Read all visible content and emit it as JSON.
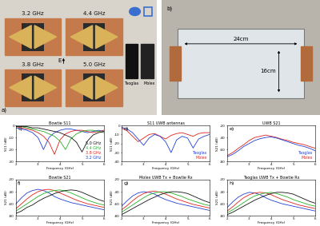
{
  "photos": {
    "a": {
      "panel": "a)",
      "labels": [
        "3.2 GHz",
        "4.4 GHz",
        "3.8 GHz",
        "5.0 GHz"
      ],
      "field": "E",
      "antennas": [
        "Taoglas",
        "Molex"
      ]
    },
    "b": {
      "panel": "b)",
      "width": "24cm",
      "height": "16cm"
    }
  },
  "chart_data": [
    {
      "type": "line",
      "panel": "c)",
      "title": "Bowtie S11",
      "xlabel": "Frequency (GHz)",
      "ylabel": "S11 (dB)",
      "xlim": [
        2,
        6
      ],
      "xticks": [
        2,
        3,
        4,
        5,
        6
      ],
      "ylim": [
        -30,
        0
      ],
      "yticks": [
        -30,
        -20,
        -10,
        0
      ],
      "x": [
        2.0,
        2.25,
        2.5,
        2.75,
        3.0,
        3.25,
        3.5,
        3.75,
        4.0,
        4.25,
        4.5,
        4.75,
        5.0,
        5.25,
        5.5,
        5.75,
        6.0
      ],
      "series": [
        {
          "name": "3.2 GHz",
          "color": "#1f3fd6",
          "values": [
            -2,
            -3,
            -4,
            -6,
            -10,
            -20,
            -10,
            -6,
            -4,
            -3,
            -3,
            -4,
            -5,
            -6,
            -5,
            -4,
            -5
          ]
        },
        {
          "name": "3.8 GHz",
          "color": "#e0201b",
          "values": [
            -1,
            -2,
            -3,
            -4,
            -6,
            -9,
            -14,
            -24,
            -12,
            -7,
            -5,
            -4,
            -4,
            -5,
            -6,
            -5,
            -4
          ]
        },
        {
          "name": "4.4 GHz",
          "color": "#22b022",
          "values": [
            -1,
            -1,
            -2,
            -3,
            -4,
            -5,
            -7,
            -9,
            -13,
            -20,
            -11,
            -7,
            -5,
            -4,
            -4,
            -5,
            -6
          ]
        },
        {
          "name": "5.0 GHz",
          "color": "#111111",
          "values": [
            -1,
            -1,
            -1,
            -2,
            -2,
            -3,
            -4,
            -5,
            -6,
            -8,
            -10,
            -14,
            -22,
            -13,
            -8,
            -6,
            -5
          ]
        }
      ]
    },
    {
      "type": "line",
      "panel": "d)",
      "title": "S11 UWB antennas",
      "xlabel": "Frequency (GHz)",
      "ylabel": "S11 (dB)",
      "xlim": [
        2,
        6
      ],
      "xticks": [
        2,
        3,
        4,
        5,
        6
      ],
      "ylim": [
        -40,
        0
      ],
      "yticks": [
        -40,
        -30,
        -20,
        -10,
        0
      ],
      "x": [
        2.0,
        2.25,
        2.5,
        2.75,
        3.0,
        3.25,
        3.5,
        3.75,
        4.0,
        4.25,
        4.5,
        4.75,
        5.0,
        5.25,
        5.5,
        5.75,
        6.0
      ],
      "series": [
        {
          "name": "Molex",
          "color": "#e0201b",
          "values": [
            -3,
            -6,
            -12,
            -18,
            -14,
            -10,
            -9,
            -12,
            -15,
            -11,
            -9,
            -8,
            -10,
            -12,
            -9,
            -8,
            -8
          ]
        },
        {
          "name": "Taoglas",
          "color": "#1f3fd6",
          "values": [
            -2,
            -4,
            -8,
            -15,
            -22,
            -14,
            -10,
            -12,
            -18,
            -30,
            -16,
            -12,
            -14,
            -25,
            -15,
            -12,
            -10
          ]
        }
      ]
    },
    {
      "type": "line",
      "panel": "e)",
      "title": "UWB S21",
      "xlabel": "Frequency (GHz)",
      "ylabel": "S21 (dB)",
      "xlim": [
        2,
        6
      ],
      "xticks": [
        2,
        3,
        4,
        5,
        6
      ],
      "ylim": [
        -80,
        -20
      ],
      "yticks": [
        -80,
        -60,
        -40,
        -20
      ],
      "x": [
        2.0,
        2.25,
        2.5,
        2.75,
        3.0,
        3.25,
        3.5,
        3.75,
        4.0,
        4.25,
        4.5,
        4.75,
        5.0,
        5.25,
        5.5,
        5.75,
        6.0
      ],
      "series": [
        {
          "name": "Molex",
          "color": "#e0201b",
          "values": [
            -70,
            -65,
            -58,
            -52,
            -45,
            -40,
            -38,
            -36,
            -38,
            -40,
            -43,
            -45,
            -48,
            -50,
            -52,
            -55,
            -58
          ]
        },
        {
          "name": "Taoglas",
          "color": "#1f3fd6",
          "values": [
            -72,
            -68,
            -62,
            -55,
            -50,
            -45,
            -42,
            -40,
            -39,
            -41,
            -44,
            -47,
            -50,
            -53,
            -55,
            -58,
            -62
          ]
        }
      ]
    },
    {
      "type": "line",
      "panel": "f)",
      "title": "Bowtie S21",
      "xlabel": "Frequency (GHz)",
      "ylabel": "S21 (dB)",
      "xlim": [
        2,
        6
      ],
      "xticks": [
        2,
        3,
        4,
        5,
        6
      ],
      "ylim": [
        -80,
        -20
      ],
      "yticks": [
        -80,
        -60,
        -40,
        -20
      ],
      "x": [
        2.0,
        2.25,
        2.5,
        2.75,
        3.0,
        3.25,
        3.5,
        3.75,
        4.0,
        4.25,
        4.5,
        4.75,
        5.0,
        5.25,
        5.5,
        5.75,
        6.0
      ],
      "series": [
        {
          "color": "#1f3fd6",
          "values": [
            -60,
            -50,
            -42,
            -38,
            -36,
            -38,
            -42,
            -48,
            -52,
            -55,
            -58,
            -60,
            -62,
            -64,
            -66,
            -68,
            -70
          ]
        },
        {
          "color": "#e0201b",
          "values": [
            -68,
            -60,
            -52,
            -45,
            -40,
            -37,
            -36,
            -38,
            -42,
            -46,
            -50,
            -54,
            -57,
            -60,
            -62,
            -64,
            -66
          ]
        },
        {
          "color": "#22b022",
          "values": [
            -72,
            -66,
            -60,
            -54,
            -48,
            -43,
            -40,
            -38,
            -37,
            -39,
            -42,
            -46,
            -50,
            -54,
            -57,
            -60,
            -62
          ]
        },
        {
          "color": "#111111",
          "values": [
            -76,
            -72,
            -66,
            -62,
            -56,
            -51,
            -47,
            -43,
            -40,
            -38,
            -37,
            -38,
            -41,
            -45,
            -49,
            -53,
            -56
          ]
        }
      ]
    },
    {
      "type": "line",
      "panel": "g)",
      "title": "Molex UWB Tx + Bowtie Rx",
      "xlabel": "Frequency (GHz)",
      "ylabel": "S21 (dB)",
      "xlim": [
        2,
        6
      ],
      "xticks": [
        2,
        3,
        4,
        5,
        6
      ],
      "ylim": [
        -80,
        -20
      ],
      "yticks": [
        -80,
        -60,
        -40,
        -20
      ],
      "x": [
        2.0,
        2.25,
        2.5,
        2.75,
        3.0,
        3.25,
        3.5,
        3.75,
        4.0,
        4.25,
        4.5,
        4.75,
        5.0,
        5.25,
        5.5,
        5.75,
        6.0
      ],
      "series": [
        {
          "color": "#1f3fd6",
          "values": [
            -64,
            -55,
            -47,
            -42,
            -40,
            -41,
            -44,
            -49,
            -53,
            -56,
            -59,
            -61,
            -63,
            -65,
            -67,
            -69,
            -71
          ]
        },
        {
          "color": "#e0201b",
          "values": [
            -70,
            -63,
            -55,
            -48,
            -43,
            -40,
            -39,
            -41,
            -44,
            -48,
            -52,
            -55,
            -58,
            -61,
            -63,
            -65,
            -67
          ]
        },
        {
          "color": "#22b022",
          "values": [
            -74,
            -68,
            -62,
            -56,
            -50,
            -45,
            -42,
            -40,
            -40,
            -42,
            -45,
            -48,
            -52,
            -55,
            -58,
            -61,
            -63
          ]
        },
        {
          "color": "#111111",
          "values": [
            -78,
            -73,
            -68,
            -63,
            -58,
            -53,
            -49,
            -45,
            -42,
            -40,
            -40,
            -41,
            -43,
            -47,
            -51,
            -55,
            -58
          ]
        }
      ]
    },
    {
      "type": "line",
      "panel": "h)",
      "title": "Taoglas UWB Tx + Bowtie Rx",
      "xlabel": "Frequency (GHz)",
      "ylabel": "S21 (dB)",
      "xlim": [
        2,
        6
      ],
      "xticks": [
        2,
        3,
        4,
        5,
        6
      ],
      "ylim": [
        -80,
        -20
      ],
      "yticks": [
        -80,
        -60,
        -40,
        -20
      ],
      "x": [
        2.0,
        2.25,
        2.5,
        2.75,
        3.0,
        3.25,
        3.5,
        3.75,
        4.0,
        4.25,
        4.5,
        4.75,
        5.0,
        5.25,
        5.5,
        5.75,
        6.0
      ],
      "series": [
        {
          "color": "#1f3fd6",
          "values": [
            -66,
            -57,
            -49,
            -44,
            -41,
            -42,
            -45,
            -50,
            -54,
            -57,
            -60,
            -62,
            -64,
            -66,
            -68,
            -70,
            -72
          ]
        },
        {
          "color": "#e0201b",
          "values": [
            -72,
            -65,
            -57,
            -50,
            -45,
            -42,
            -41,
            -42,
            -45,
            -49,
            -53,
            -56,
            -59,
            -62,
            -64,
            -66,
            -68
          ]
        },
        {
          "color": "#22b022",
          "values": [
            -75,
            -70,
            -64,
            -58,
            -52,
            -47,
            -44,
            -42,
            -41,
            -43,
            -46,
            -49,
            -53,
            -56,
            -59,
            -62,
            -64
          ]
        },
        {
          "color": "#111111",
          "values": [
            -78,
            -74,
            -69,
            -64,
            -59,
            -54,
            -50,
            -46,
            -43,
            -41,
            -41,
            -42,
            -44,
            -48,
            -52,
            -56,
            -59
          ]
        }
      ]
    }
  ]
}
